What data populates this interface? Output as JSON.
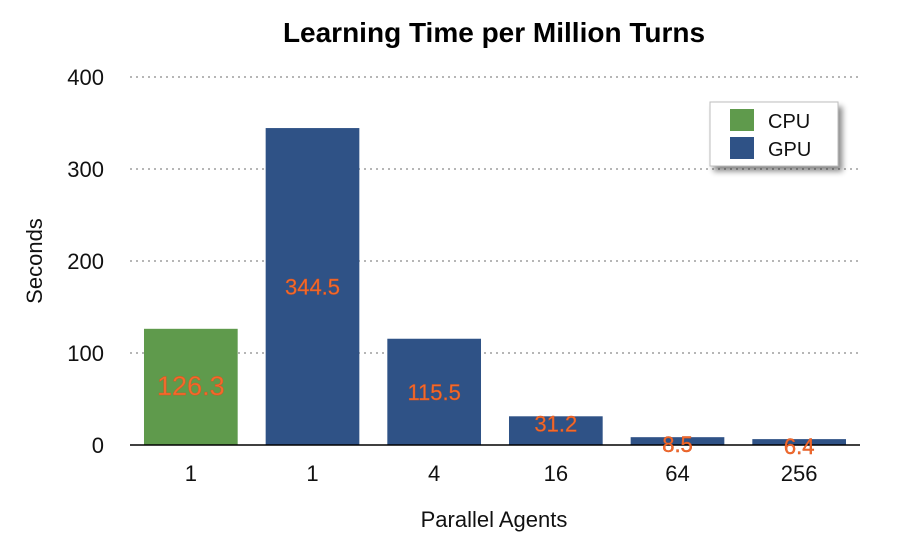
{
  "chart_data": {
    "type": "bar",
    "title": "Learning Time per Million Turns",
    "xlabel": "Parallel Agents",
    "ylabel": "Seconds",
    "ylim": [
      0,
      400
    ],
    "yticks": [
      0,
      100,
      200,
      300,
      400
    ],
    "grid": true,
    "grid_style": "dotted",
    "legend_placement": "top-right",
    "categories": [
      "1",
      "1",
      "4",
      "16",
      "64",
      "256"
    ],
    "values": [
      126.3,
      344.5,
      115.5,
      31.2,
      8.5,
      6.4
    ],
    "data_labels": [
      "126.3",
      "344.5",
      "115.5",
      "31.2",
      "8.5",
      "6.4"
    ],
    "bar_series": [
      "CPU",
      "GPU",
      "GPU",
      "GPU",
      "GPU",
      "GPU"
    ],
    "series": [
      {
        "name": "CPU",
        "color": "#5f9a4c"
      },
      {
        "name": "GPU",
        "color": "#2f5286"
      }
    ],
    "label_color": "#f26a2d"
  }
}
